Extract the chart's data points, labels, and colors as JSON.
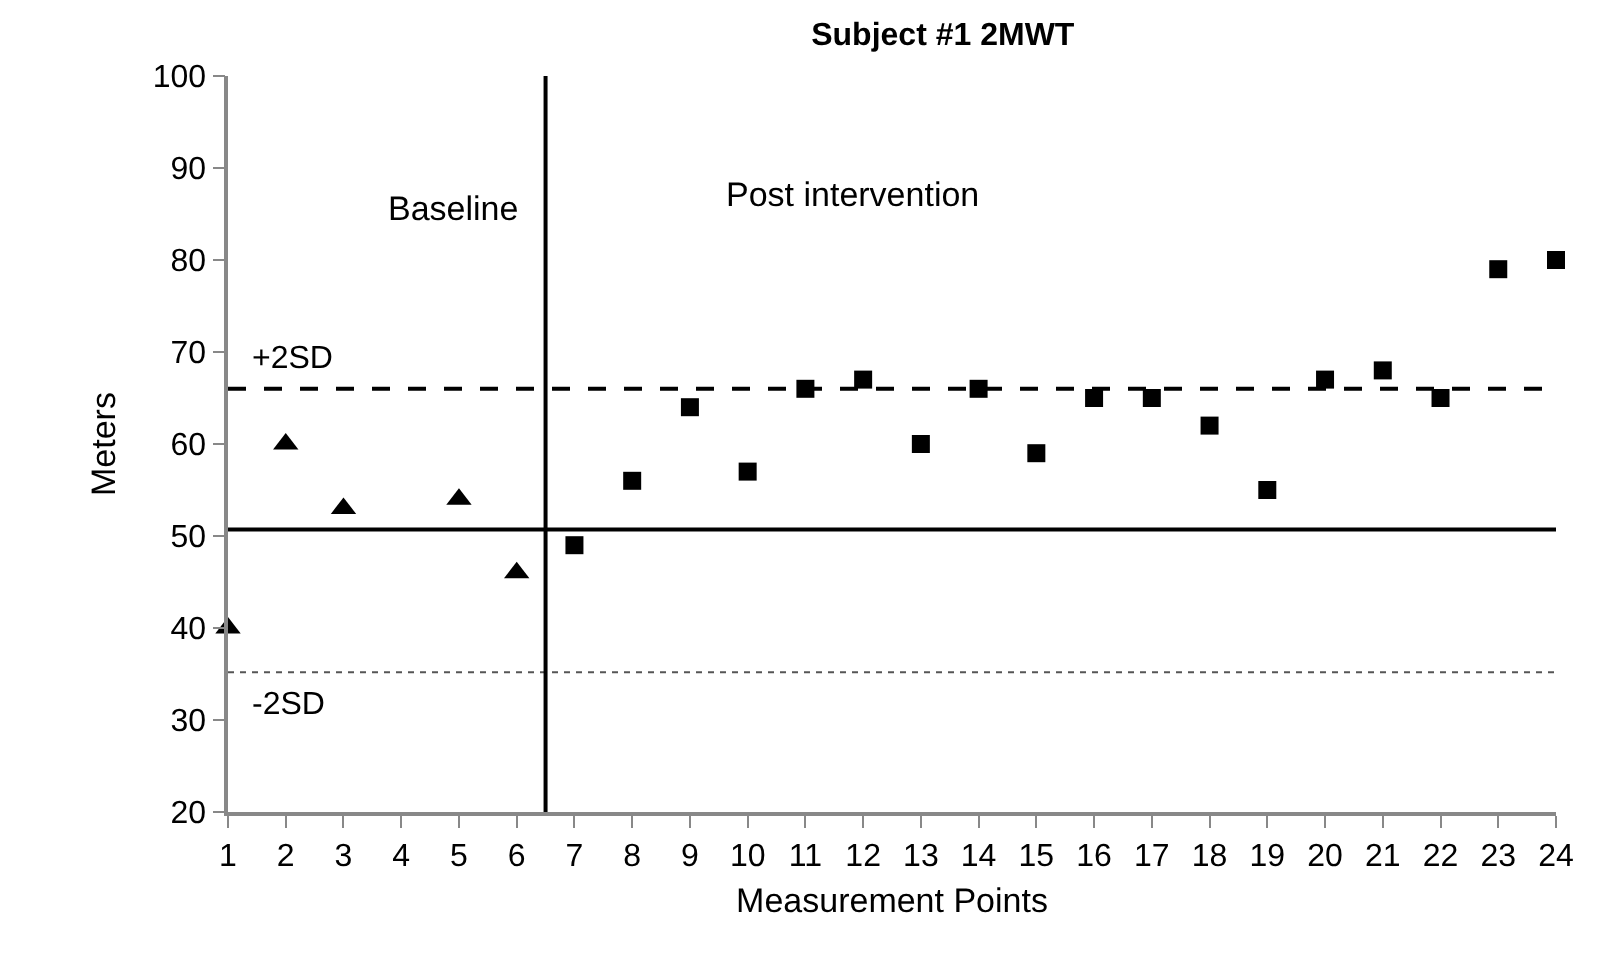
{
  "chart_data": {
    "type": "scatter",
    "title": "Subject #1 2MWT",
    "xlabel": "Measurement Points",
    "ylabel": "Meters",
    "series": [
      {
        "marker": "triangle",
        "color": "#000000",
        "x": [
          1,
          2,
          3,
          5,
          6
        ],
        "values": [
          40,
          60,
          53,
          54,
          46
        ]
      },
      {
        "marker": "square",
        "color": "#000000",
        "x": [
          7,
          8,
          9,
          10,
          11,
          12,
          13,
          14,
          15,
          16,
          17,
          18,
          19,
          20,
          21,
          22,
          23,
          24
        ],
        "values": [
          49,
          56,
          64,
          57,
          66,
          67,
          60,
          66,
          59,
          65,
          65,
          62,
          55,
          67,
          68,
          65,
          79,
          80
        ]
      }
    ],
    "xlim": [
      1,
      24
    ],
    "xticks": [
      1,
      2,
      3,
      4,
      5,
      6,
      7,
      8,
      9,
      10,
      11,
      12,
      13,
      14,
      15,
      16,
      17,
      18,
      19,
      20,
      21,
      22,
      23,
      24
    ],
    "ylim": [
      20,
      100
    ],
    "yticks": [
      20,
      30,
      40,
      50,
      60,
      70,
      80,
      90,
      100
    ],
    "ref_lines": [
      {
        "axis": "y",
        "value": 66,
        "label": "+2SD",
        "line_style": "dashed",
        "color": "#000000"
      },
      {
        "axis": "y",
        "value": 50.7,
        "line_style": "solid",
        "color": "#000000"
      },
      {
        "axis": "y",
        "value": 35.2,
        "label": "-2SD",
        "line_style": "dotted",
        "color": "#555555"
      },
      {
        "axis": "x",
        "value": 6.5,
        "line_style": "solid",
        "color": "#000000"
      }
    ],
    "annotations": [
      "Baseline",
      "Post intervention"
    ],
    "grid": false
  }
}
